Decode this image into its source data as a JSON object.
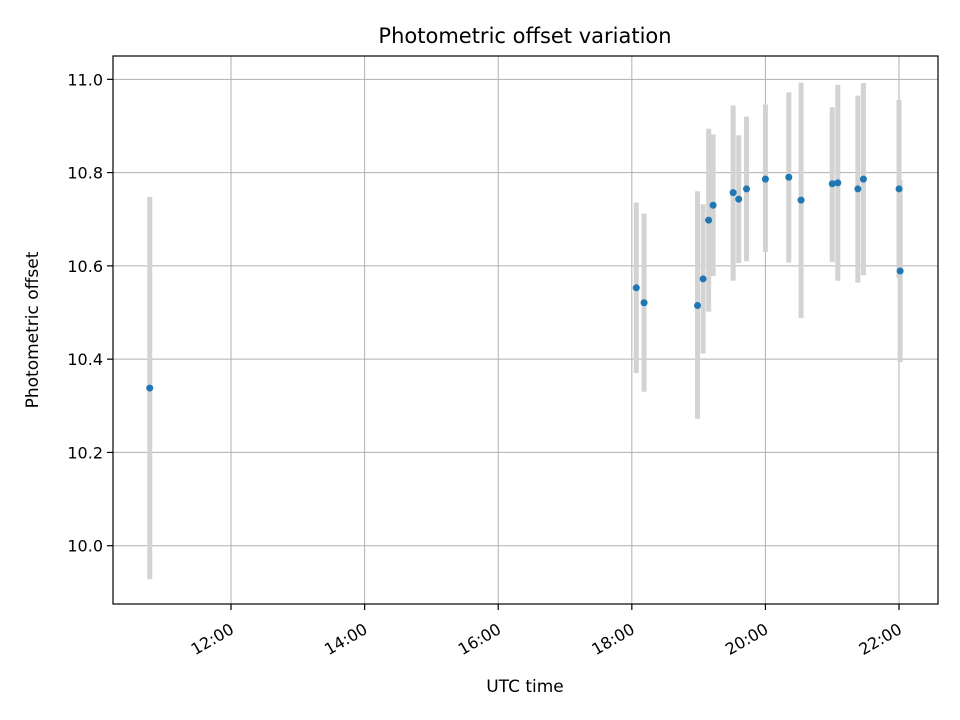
{
  "chart_data": {
    "type": "scatter",
    "title": "Photometric offset variation",
    "xlabel": "UTC time",
    "ylabel": "Photometric offset",
    "xlim": [
      "10:14",
      "22:35"
    ],
    "ylim": [
      9.875,
      11.05
    ],
    "x_ticks": [
      "12:00",
      "14:00",
      "16:00",
      "18:00",
      "20:00",
      "22:00"
    ],
    "y_ticks": [
      "10.0",
      "10.2",
      "10.4",
      "10.6",
      "10.8",
      "11.0"
    ],
    "grid": true,
    "colors": {
      "point": "#1f77b4",
      "errorbar": "#d3d3d3",
      "grid": "#b0b0b0"
    },
    "points": [
      {
        "x": "10:47",
        "y": 10.338,
        "ylow": 9.928,
        "yhigh": 10.748
      },
      {
        "x": "18:04",
        "y": 10.553,
        "ylow": 10.37,
        "yhigh": 10.736
      },
      {
        "x": "18:11",
        "y": 10.521,
        "ylow": 10.33,
        "yhigh": 10.712
      },
      {
        "x": "18:59",
        "y": 10.515,
        "ylow": 10.272,
        "yhigh": 10.76
      },
      {
        "x": "19:04",
        "y": 10.572,
        "ylow": 10.412,
        "yhigh": 10.732
      },
      {
        "x": "19:09",
        "y": 10.698,
        "ylow": 10.502,
        "yhigh": 10.894
      },
      {
        "x": "19:13",
        "y": 10.73,
        "ylow": 10.578,
        "yhigh": 10.882
      },
      {
        "x": "19:31",
        "y": 10.757,
        "ylow": 10.568,
        "yhigh": 10.944
      },
      {
        "x": "19:36",
        "y": 10.743,
        "ylow": 10.606,
        "yhigh": 10.88
      },
      {
        "x": "19:43",
        "y": 10.765,
        "ylow": 10.61,
        "yhigh": 10.92
      },
      {
        "x": "20:00",
        "y": 10.786,
        "ylow": 10.63,
        "yhigh": 10.946
      },
      {
        "x": "20:21",
        "y": 10.79,
        "ylow": 10.607,
        "yhigh": 10.972
      },
      {
        "x": "20:32",
        "y": 10.741,
        "ylow": 10.488,
        "yhigh": 10.993
      },
      {
        "x": "21:00",
        "y": 10.776,
        "ylow": 10.608,
        "yhigh": 10.94
      },
      {
        "x": "21:05",
        "y": 10.778,
        "ylow": 10.568,
        "yhigh": 10.988
      },
      {
        "x": "21:23",
        "y": 10.765,
        "ylow": 10.564,
        "yhigh": 10.965
      },
      {
        "x": "21:28",
        "y": 10.786,
        "ylow": 10.58,
        "yhigh": 10.992
      },
      {
        "x": "22:00",
        "y": 10.765,
        "ylow": 10.574,
        "yhigh": 10.956
      },
      {
        "x": "22:01",
        "y": 10.589,
        "ylow": 10.394,
        "yhigh": 10.784
      }
    ]
  }
}
